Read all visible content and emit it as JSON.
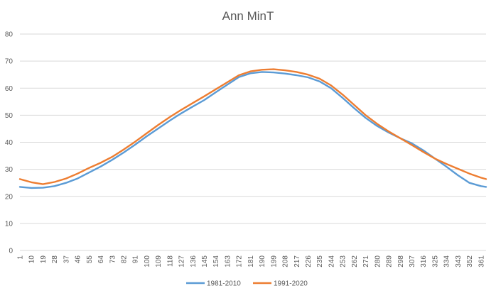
{
  "chart_data": {
    "type": "line",
    "title": "Ann MinT",
    "xlabel": "",
    "ylabel": "",
    "ylim": [
      0,
      80
    ],
    "xlim": [
      1,
      365
    ],
    "yticks": [
      0,
      10,
      20,
      30,
      40,
      50,
      60,
      70,
      80
    ],
    "xticks": [
      1,
      10,
      19,
      28,
      37,
      46,
      55,
      64,
      73,
      82,
      91,
      100,
      109,
      118,
      127,
      136,
      145,
      154,
      163,
      172,
      181,
      190,
      199,
      208,
      217,
      226,
      235,
      244,
      253,
      262,
      271,
      280,
      289,
      298,
      307,
      316,
      325,
      334,
      343,
      352,
      361
    ],
    "grid": true,
    "legend": "bottom",
    "series": [
      {
        "name": "1981-2010",
        "color": "#5b9bd5",
        "x": [
          1,
          10,
          19,
          28,
          37,
          46,
          55,
          64,
          73,
          82,
          91,
          100,
          109,
          118,
          127,
          136,
          145,
          154,
          163,
          172,
          181,
          190,
          199,
          208,
          217,
          226,
          235,
          244,
          253,
          262,
          271,
          280,
          289,
          298,
          307,
          316,
          325,
          334,
          343,
          352,
          361,
          365
        ],
        "values": [
          23.5,
          23.1,
          23.2,
          23.8,
          25.0,
          26.6,
          28.8,
          31.0,
          33.5,
          36.2,
          39.1,
          42.2,
          45.1,
          48.0,
          50.7,
          53.2,
          55.6,
          58.5,
          61.3,
          64.1,
          65.5,
          66.0,
          65.8,
          65.4,
          64.8,
          64.0,
          62.5,
          60.0,
          56.4,
          52.6,
          49.0,
          46.0,
          43.6,
          41.5,
          39.6,
          37.0,
          34.0,
          31.0,
          27.8,
          25.0,
          23.8,
          23.5
        ]
      },
      {
        "name": "1991-2020",
        "color": "#ed7d31",
        "x": [
          1,
          10,
          19,
          28,
          37,
          46,
          55,
          64,
          73,
          82,
          91,
          100,
          109,
          118,
          127,
          136,
          145,
          154,
          163,
          172,
          181,
          190,
          199,
          208,
          217,
          226,
          235,
          244,
          253,
          262,
          271,
          280,
          289,
          298,
          307,
          316,
          325,
          334,
          343,
          352,
          361,
          365
        ],
        "values": [
          26.4,
          25.2,
          24.5,
          25.3,
          26.6,
          28.4,
          30.5,
          32.4,
          34.6,
          37.3,
          40.2,
          43.3,
          46.4,
          49.3,
          52.0,
          54.5,
          57.0,
          59.6,
          62.2,
          64.8,
          66.2,
          66.8,
          67.0,
          66.6,
          66.0,
          65.0,
          63.5,
          61.0,
          57.6,
          53.8,
          50.0,
          46.8,
          44.0,
          41.5,
          39.0,
          36.4,
          34.0,
          32.0,
          30.2,
          28.4,
          26.9,
          26.4
        ]
      }
    ]
  }
}
